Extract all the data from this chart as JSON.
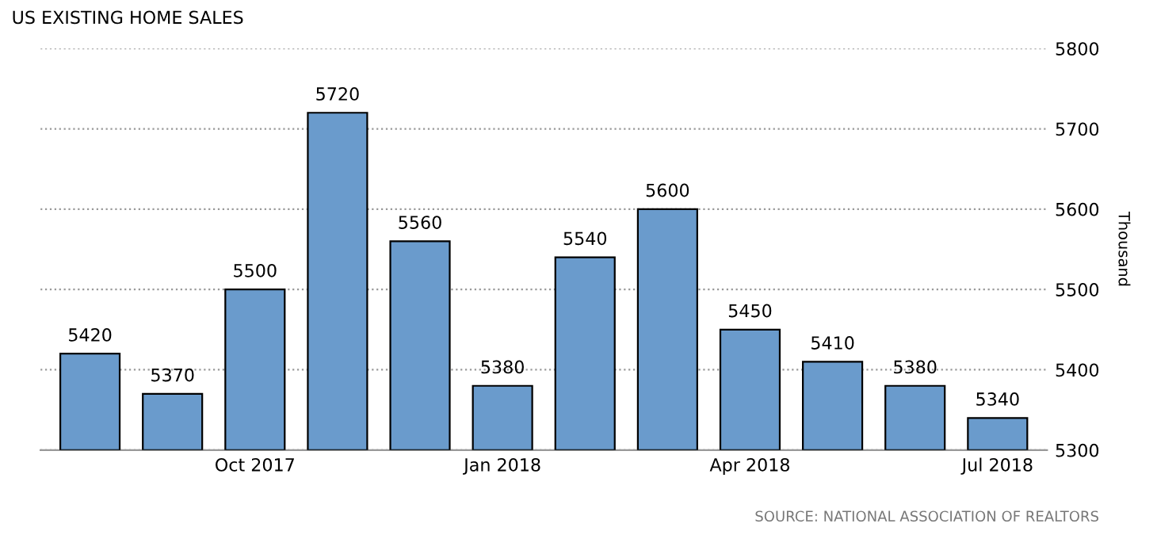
{
  "chart_data": {
    "type": "bar",
    "title": "US EXISTING HOME SALES",
    "ylabel": "Thousand",
    "categories": [
      null,
      null,
      "Oct 2017",
      null,
      null,
      "Jan 2018",
      null,
      null,
      "Apr 2018",
      null,
      null,
      "Jul 2018"
    ],
    "values": [
      5420,
      5370,
      5500,
      5720,
      5560,
      5380,
      5540,
      5600,
      5450,
      5410,
      5380,
      5340
    ],
    "color": "#6a9bcc",
    "data_labels": true,
    "grid": "y",
    "ylim": [
      5300,
      5800
    ],
    "yticks": [
      5300,
      5400,
      5500,
      5600,
      5700,
      5800
    ],
    "annotations": [
      "SOURCE: NATIONAL ASSOCIATION OF REALTORS"
    ]
  }
}
